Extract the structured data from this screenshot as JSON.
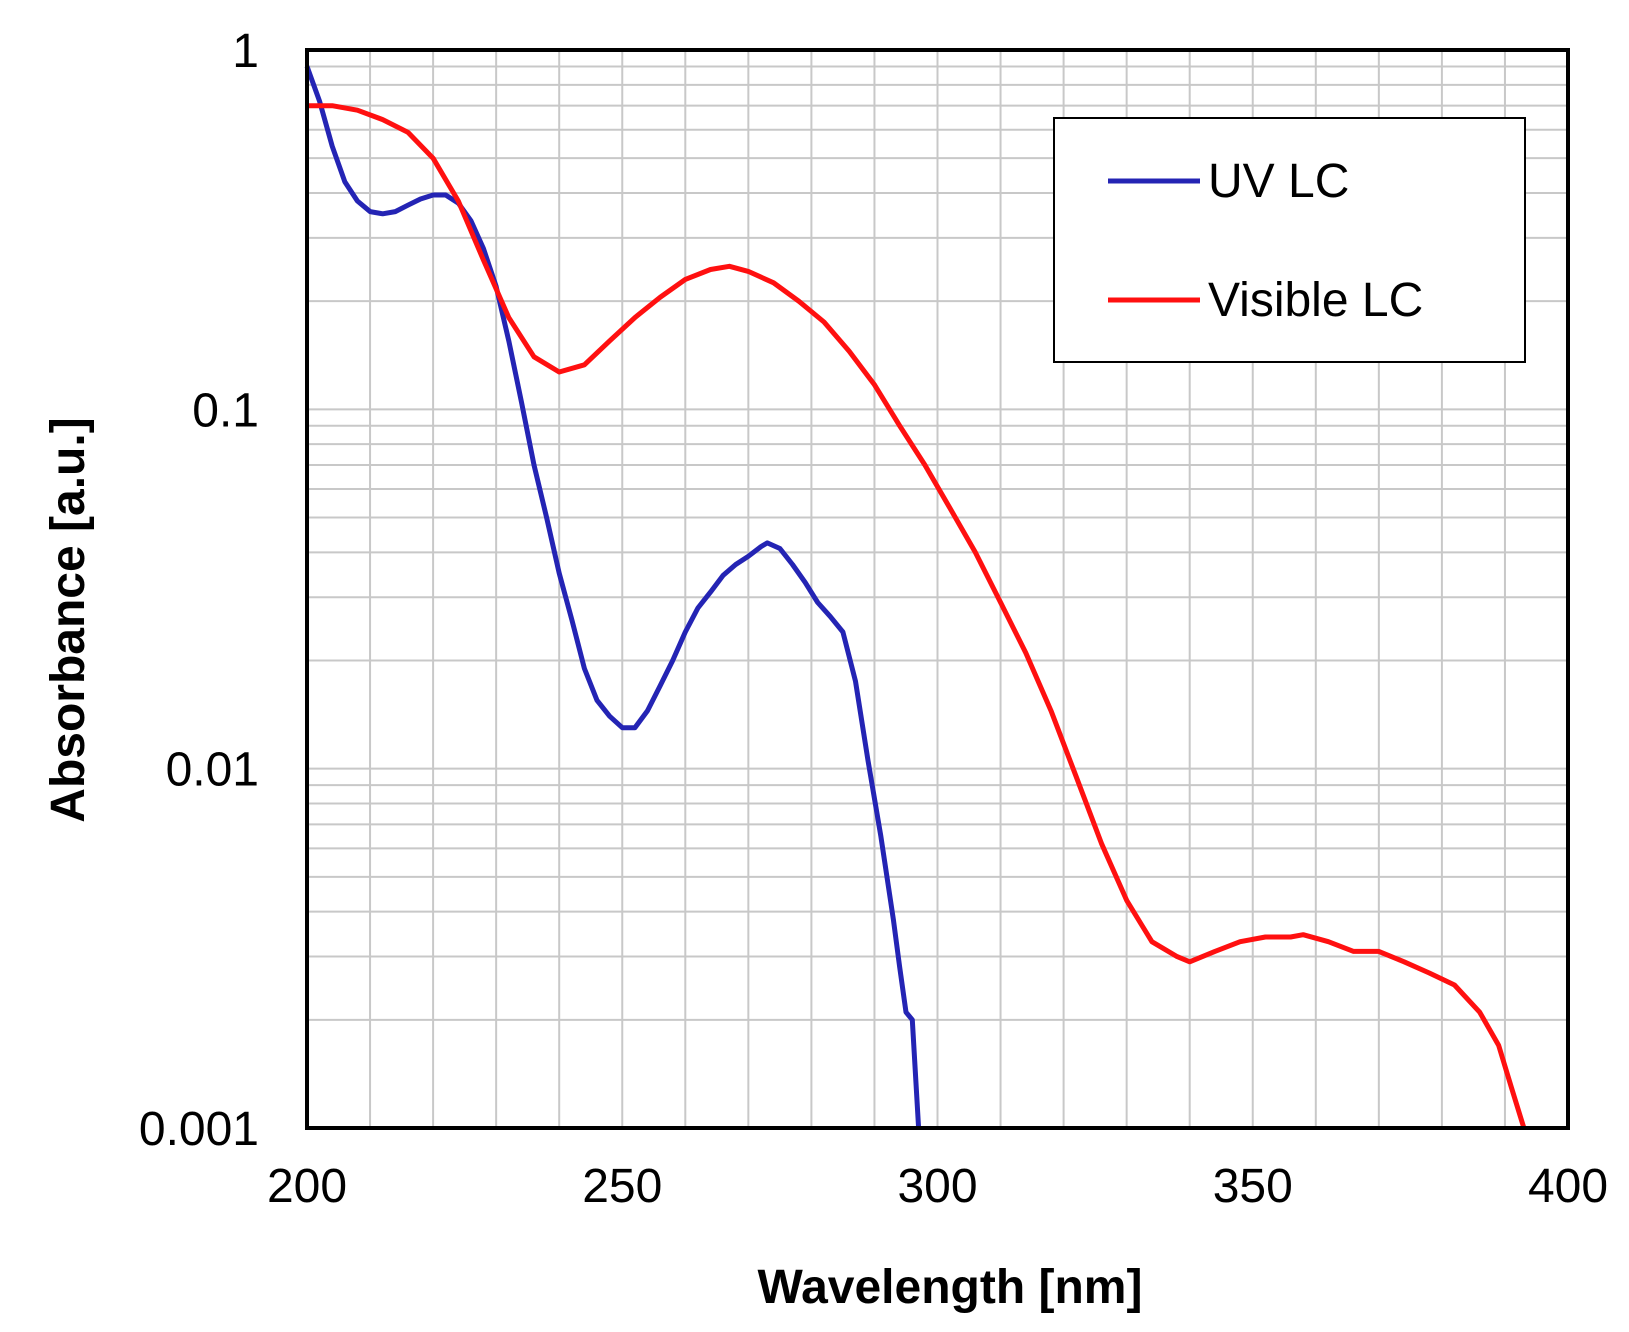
{
  "chart_data": {
    "type": "line",
    "xlabel": "Wavelength [nm]",
    "ylabel": "Absorbance [a.u.]",
    "xlim": [
      200,
      400
    ],
    "ylim": [
      0.001,
      1
    ],
    "yscale": "log",
    "grid": true,
    "legend_position": "top-right",
    "x_ticks": [
      200,
      250,
      300,
      350,
      400
    ],
    "x_tick_labels": [
      "200",
      "250",
      "300",
      "350",
      "400"
    ],
    "y_ticks": [
      0.001,
      0.01,
      0.1,
      1
    ],
    "y_tick_labels": [
      "0.001",
      "0.01",
      "0.1",
      "1"
    ],
    "series": [
      {
        "name": "UV LC",
        "color": "#2424b4",
        "points": [
          [
            200,
            0.9
          ],
          [
            202,
            0.72
          ],
          [
            204,
            0.54
          ],
          [
            206,
            0.43
          ],
          [
            208,
            0.38
          ],
          [
            210,
            0.355
          ],
          [
            212,
            0.35
          ],
          [
            214,
            0.355
          ],
          [
            216,
            0.37
          ],
          [
            218,
            0.385
          ],
          [
            220,
            0.395
          ],
          [
            222,
            0.395
          ],
          [
            224,
            0.375
          ],
          [
            226,
            0.335
          ],
          [
            228,
            0.28
          ],
          [
            230,
            0.22
          ],
          [
            232,
            0.155
          ],
          [
            234,
            0.105
          ],
          [
            236,
            0.07
          ],
          [
            238,
            0.05
          ],
          [
            240,
            0.035
          ],
          [
            242,
            0.026
          ],
          [
            244,
            0.019
          ],
          [
            246,
            0.0155
          ],
          [
            248,
            0.014
          ],
          [
            250,
            0.013
          ],
          [
            252,
            0.013
          ],
          [
            254,
            0.0145
          ],
          [
            256,
            0.017
          ],
          [
            258,
            0.02
          ],
          [
            260,
            0.024
          ],
          [
            262,
            0.028
          ],
          [
            264,
            0.031
          ],
          [
            266,
            0.0345
          ],
          [
            268,
            0.037
          ],
          [
            270,
            0.039
          ],
          [
            272,
            0.0415
          ],
          [
            273,
            0.0425
          ],
          [
            275,
            0.041
          ],
          [
            277,
            0.037
          ],
          [
            279,
            0.033
          ],
          [
            281,
            0.029
          ],
          [
            283,
            0.0265
          ],
          [
            285,
            0.024
          ],
          [
            287,
            0.0175
          ],
          [
            289,
            0.0105
          ],
          [
            291,
            0.0065
          ],
          [
            293,
            0.0038
          ],
          [
            294,
            0.0028
          ],
          [
            295,
            0.0021
          ],
          [
            296,
            0.002
          ],
          [
            297,
            0.001
          ]
        ]
      },
      {
        "name": "Visible LC",
        "color": "#ff1010",
        "points": [
          [
            200,
            0.7
          ],
          [
            204,
            0.7
          ],
          [
            208,
            0.68
          ],
          [
            212,
            0.64
          ],
          [
            216,
            0.59
          ],
          [
            220,
            0.5
          ],
          [
            224,
            0.38
          ],
          [
            228,
            0.26
          ],
          [
            232,
            0.18
          ],
          [
            236,
            0.14
          ],
          [
            240,
            0.127
          ],
          [
            244,
            0.133
          ],
          [
            248,
            0.155
          ],
          [
            252,
            0.18
          ],
          [
            256,
            0.205
          ],
          [
            260,
            0.23
          ],
          [
            264,
            0.245
          ],
          [
            267,
            0.25
          ],
          [
            270,
            0.242
          ],
          [
            274,
            0.225
          ],
          [
            278,
            0.2
          ],
          [
            282,
            0.175
          ],
          [
            286,
            0.145
          ],
          [
            290,
            0.117
          ],
          [
            294,
            0.09
          ],
          [
            298,
            0.07
          ],
          [
            302,
            0.053
          ],
          [
            306,
            0.04
          ],
          [
            310,
            0.029
          ],
          [
            314,
            0.021
          ],
          [
            318,
            0.0145
          ],
          [
            322,
            0.0095
          ],
          [
            326,
            0.0062
          ],
          [
            330,
            0.0043
          ],
          [
            334,
            0.0033
          ],
          [
            338,
            0.003
          ],
          [
            340,
            0.0029
          ],
          [
            344,
            0.0031
          ],
          [
            348,
            0.0033
          ],
          [
            352,
            0.0034
          ],
          [
            356,
            0.0034
          ],
          [
            358,
            0.00345
          ],
          [
            362,
            0.0033
          ],
          [
            366,
            0.0031
          ],
          [
            370,
            0.0031
          ],
          [
            374,
            0.0029
          ],
          [
            378,
            0.0027
          ],
          [
            382,
            0.0025
          ],
          [
            386,
            0.0021
          ],
          [
            389,
            0.0017
          ],
          [
            391,
            0.0013
          ],
          [
            393,
            0.001
          ]
        ]
      }
    ]
  }
}
